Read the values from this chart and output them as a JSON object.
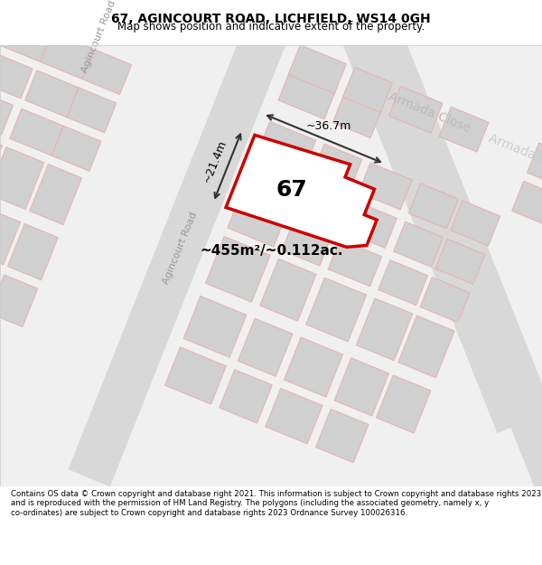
{
  "title_line1": "67, AGINCOURT ROAD, LICHFIELD, WS14 0GH",
  "title_line2": "Map shows position and indicative extent of the property.",
  "footer_text": "Contains OS data © Crown copyright and database right 2021. This information is subject to Crown copyright and database rights 2023 and is reproduced with the permission of HM Land Registry. The polygons (including the associated geometry, namely x, y co-ordinates) are subject to Crown copyright and database rights 2023 Ordnance Survey 100026316.",
  "area_text": "~455m²/~0.112ac.",
  "width_text": "~36.7m",
  "height_text": "~21.4m",
  "property_number": "67",
  "bg_color": "#f5f5f5",
  "map_bg": "#f5f5f5",
  "road_color": "#d8d8d8",
  "building_color": "#d0d0d0",
  "property_outline_color": "#e8a0a0",
  "highlight_color": "#cc0000",
  "road_label_color": "#888888",
  "street_label_color": "#aaaaaa"
}
